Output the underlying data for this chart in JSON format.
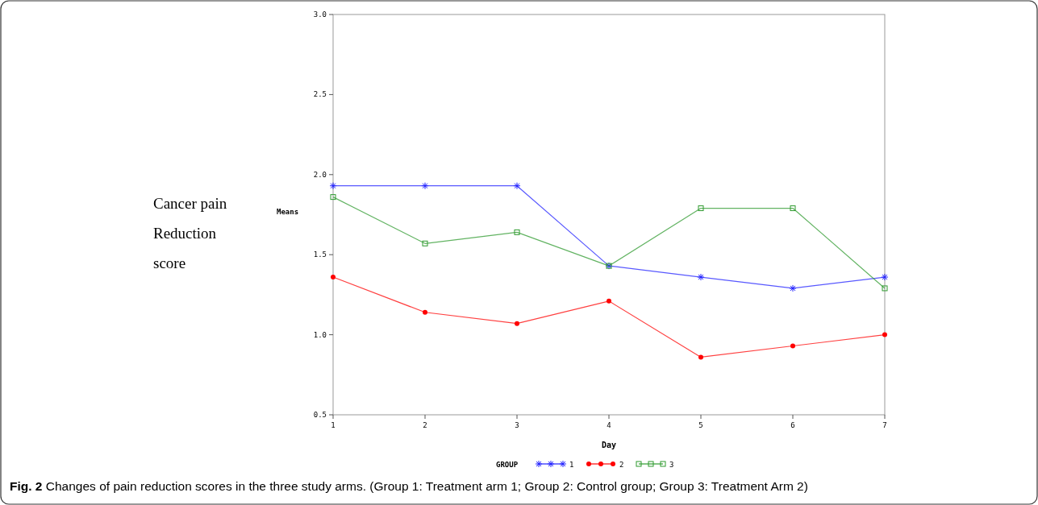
{
  "chart_data": {
    "type": "line",
    "xlabel": "Day",
    "ylabel": "Means",
    "legend_title": "GROUP",
    "legend": "bottom",
    "grid": false,
    "x": [
      1,
      2,
      3,
      4,
      5,
      6,
      7
    ],
    "xlim": [
      1,
      7
    ],
    "xticks": [
      1,
      2,
      3,
      4,
      5,
      6,
      7
    ],
    "ylim": [
      0.5,
      3.0
    ],
    "yticks": [
      {
        "value": 0.5,
        "label": "0.5"
      },
      {
        "value": 1.0,
        "label": "1.0"
      },
      {
        "value": 1.5,
        "label": "1.5"
      },
      {
        "value": 2.0,
        "label": "2.0"
      },
      {
        "value": 2.5,
        "label": "2.5"
      },
      {
        "value": 3.0,
        "label": "3.0"
      }
    ],
    "series": [
      {
        "name": "1",
        "color": "#2020ff",
        "marker": "cross",
        "values": [
          1.93,
          1.93,
          1.93,
          1.43,
          1.36,
          1.29,
          1.36
        ]
      },
      {
        "name": "2",
        "color": "#ff0000",
        "marker": "circle",
        "values": [
          1.36,
          1.14,
          1.07,
          1.21,
          0.86,
          0.93,
          1.0
        ]
      },
      {
        "name": "3",
        "color": "#2e9a2e",
        "marker": "square",
        "values": [
          1.86,
          1.57,
          1.64,
          1.43,
          1.79,
          1.79,
          1.29
        ]
      }
    ],
    "annotations": [
      "Cancer pain Reduction score",
      "Fig. 2 Changes of pain reduction scores in the three study arms. (Group 1: Treatment arm 1; Group 2: Control group; Group 3: Treatment Arm 2)"
    ]
  }
}
